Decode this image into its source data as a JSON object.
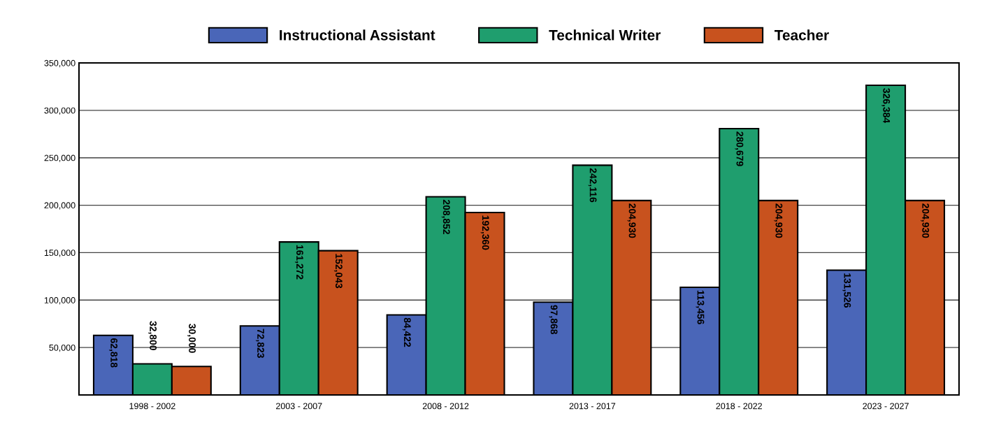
{
  "chart_data": {
    "type": "bar",
    "categories": [
      "1998 - 2002",
      "2003 - 2007",
      "2008 - 2012",
      "2013 - 2017",
      "2018 - 2022",
      "2023 - 2027"
    ],
    "series": [
      {
        "name": "Instructional Assistant",
        "color": "#4a66b8",
        "values": [
          62818,
          72823,
          84422,
          97868,
          113456,
          131526
        ],
        "value_labels": [
          "62,818",
          "72,823",
          "84,422",
          "97,868",
          "113,456",
          "131,526"
        ]
      },
      {
        "name": "Technical Writer",
        "color": "#1f9e6e",
        "values": [
          32800,
          161272,
          208852,
          242116,
          280679,
          326384
        ],
        "value_labels": [
          "32,800",
          "161,272",
          "208,852",
          "242,116",
          "280,679",
          "326,384"
        ]
      },
      {
        "name": "Teacher",
        "color": "#c8521e",
        "values": [
          30000,
          152043,
          192360,
          204930,
          204930,
          204930
        ],
        "value_labels": [
          "30,000",
          "152,043",
          "192,360",
          "204,930",
          "204,930",
          "204,930"
        ]
      }
    ],
    "ylim": [
      0,
      350000
    ],
    "yticks": [
      {
        "value": 50000,
        "label": "50,000"
      },
      {
        "value": 100000,
        "label": "100,000"
      },
      {
        "value": 150000,
        "label": "150,000"
      },
      {
        "value": 200000,
        "label": "200,000"
      },
      {
        "value": 250000,
        "label": "250,000"
      },
      {
        "value": 300000,
        "label": "300,000"
      },
      {
        "value": 350000,
        "label": "350,000"
      }
    ],
    "grid": "y",
    "legend": "top"
  }
}
